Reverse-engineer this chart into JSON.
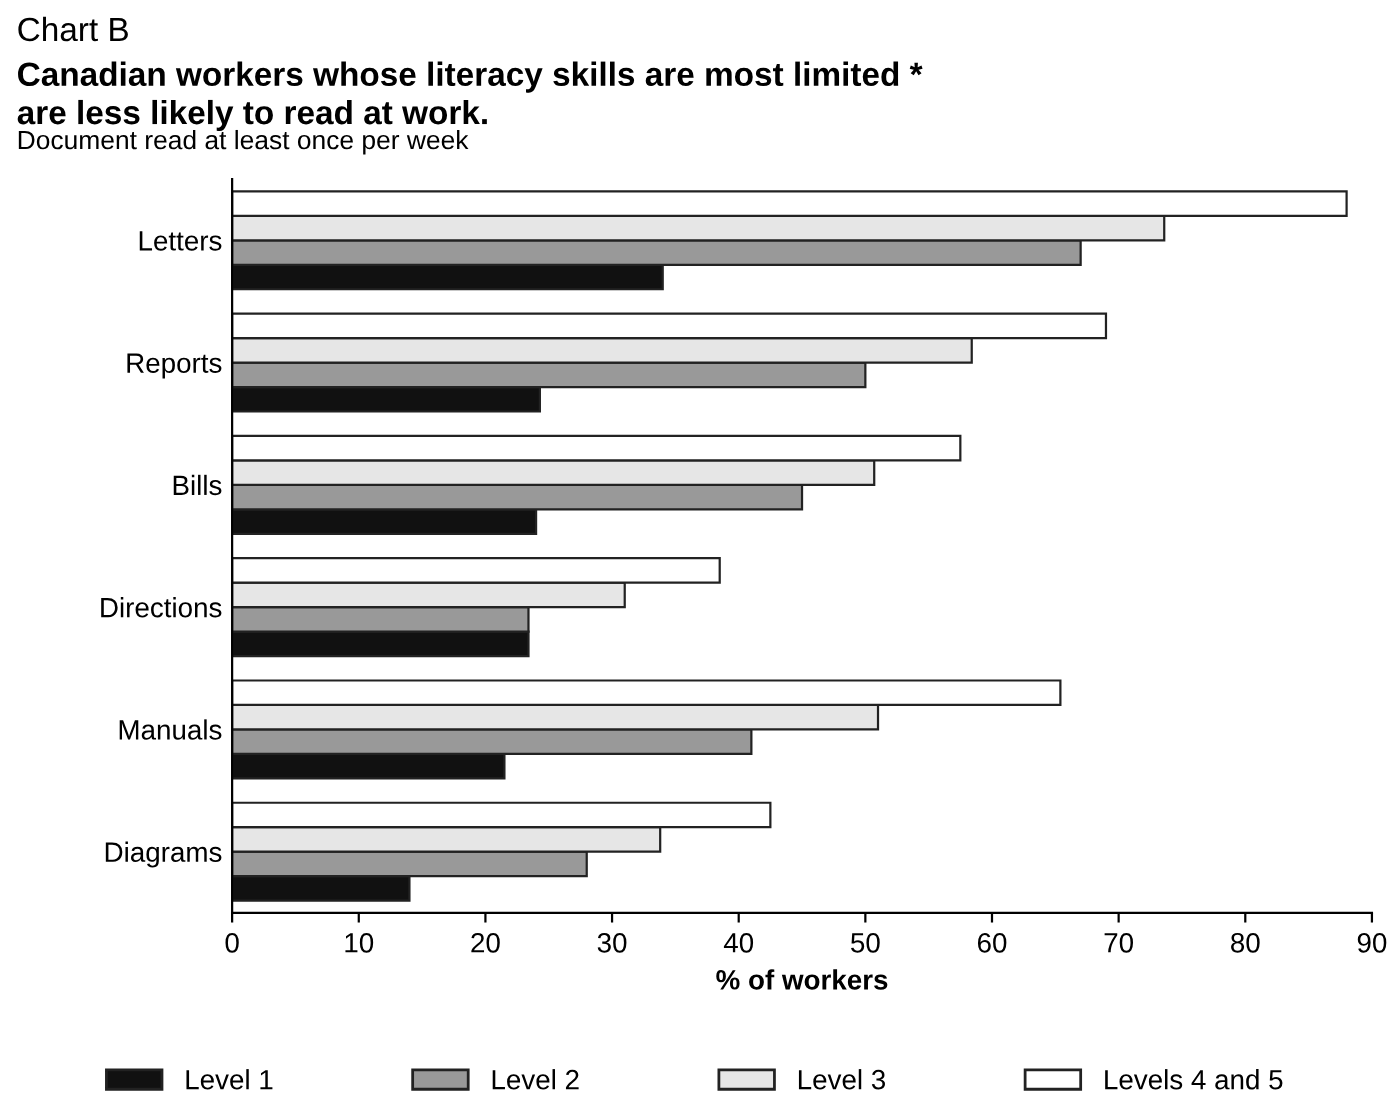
{
  "chart_data": {
    "type": "bar",
    "orientation": "horizontal",
    "title": "Chart B",
    "subtitle": "Canadian workers whose literacy skills are most limited *\nare less likely to read at work.",
    "ylabel": "Document read at least once per week",
    "xlabel": "% of workers",
    "categories": [
      "Letters",
      "Reports",
      "Bills",
      "Directions",
      "Manuals",
      "Diagrams"
    ],
    "series": [
      {
        "name": "Level 1",
        "color": "#111111",
        "values": [
          34,
          24.3,
          24,
          23.4,
          21.5,
          14
        ]
      },
      {
        "name": "Level 2",
        "color": "#999999",
        "values": [
          67,
          50,
          45,
          23.4,
          41,
          28
        ]
      },
      {
        "name": "Level 3",
        "color": "#e6e6e6",
        "values": [
          73.6,
          58.4,
          50.7,
          31,
          51,
          33.8
        ]
      },
      {
        "name": "Levels 4 and 5",
        "color": "#ffffff",
        "values": [
          88,
          69,
          57.5,
          38.5,
          65.4,
          42.5
        ]
      }
    ],
    "xlim": [
      0,
      90
    ],
    "xticks": [
      0,
      10,
      20,
      30,
      40,
      50,
      60,
      70,
      80,
      90
    ],
    "grid": false,
    "legend": "bottom"
  }
}
